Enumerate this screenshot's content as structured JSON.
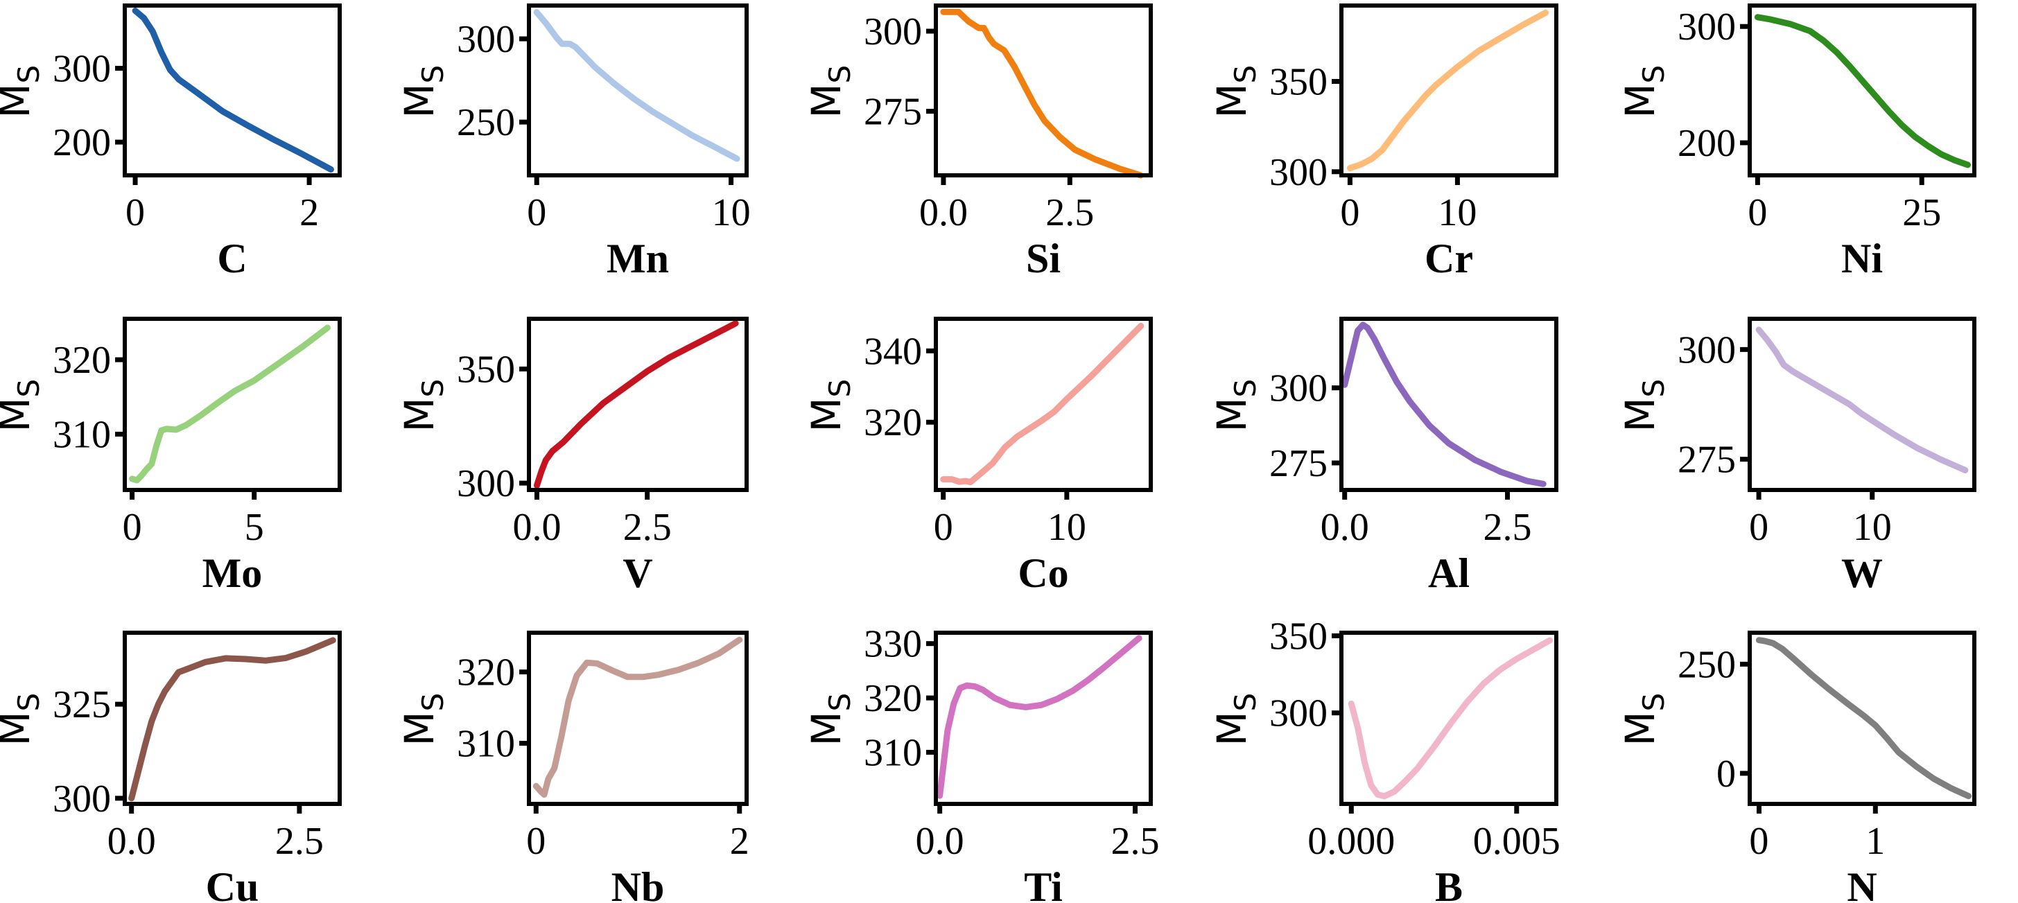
{
  "chart_data": [
    {
      "type": "line",
      "title": "",
      "xlabel": "C",
      "ylabel": "Ms",
      "color": "#1f5fa8",
      "xlim": [
        -0.12,
        2.35
      ],
      "ylim": [
        155,
        385
      ],
      "xticks": [
        0,
        2
      ],
      "xtick_labels": [
        "0",
        "2"
      ],
      "yticks": [
        200,
        300
      ],
      "ytick_labels": [
        "200",
        "300"
      ],
      "x": [
        0,
        0.1,
        0.2,
        0.3,
        0.4,
        0.5,
        0.7,
        1.0,
        1.3,
        1.6,
        1.9,
        2.25
      ],
      "y": [
        378,
        368,
        350,
        322,
        298,
        285,
        268,
        242,
        222,
        203,
        185,
        163
      ]
    },
    {
      "type": "line",
      "title": "",
      "xlabel": "Mn",
      "ylabel": "Ms",
      "color": "#aec7e8",
      "xlim": [
        -0.4,
        10.8
      ],
      "ylim": [
        218,
        320
      ],
      "xticks": [
        0,
        10
      ],
      "xtick_labels": [
        "0",
        "10"
      ],
      "yticks": [
        250,
        300
      ],
      "ytick_labels": [
        "250",
        "300"
      ],
      "x": [
        0,
        0.5,
        1.0,
        1.3,
        1.7,
        2.0,
        3.0,
        4.0,
        5.0,
        6.0,
        7.0,
        8.0,
        9.0,
        10.3
      ],
      "y": [
        316,
        309,
        301,
        297,
        297,
        295,
        283,
        273,
        264,
        256,
        249,
        242,
        236,
        228
      ]
    },
    {
      "type": "line",
      "title": "",
      "xlabel": "Si",
      "ylabel": "Ms",
      "color": "#f07f10",
      "xlim": [
        -0.15,
        4.1
      ],
      "ylim": [
        255,
        308
      ],
      "xticks": [
        0.0,
        2.5
      ],
      "xtick_labels": [
        "0.0",
        "2.5"
      ],
      "yticks": [
        275,
        300
      ],
      "ytick_labels": [
        "275",
        "300"
      ],
      "x": [
        0,
        0.15,
        0.3,
        0.5,
        0.7,
        0.8,
        0.9,
        1.0,
        1.2,
        1.4,
        1.6,
        1.8,
        2.0,
        2.3,
        2.6,
        3.0,
        3.5,
        3.9
      ],
      "y": [
        306,
        306,
        306,
        303,
        301,
        301,
        298,
        296,
        294,
        289,
        283,
        277,
        272,
        267,
        263,
        260,
        257,
        255
      ]
    },
    {
      "type": "line",
      "title": "",
      "xlabel": "Cr",
      "ylabel": "Ms",
      "color": "#ffbb78",
      "xlim": [
        -0.8,
        19.2
      ],
      "ylim": [
        298,
        392
      ],
      "xticks": [
        0,
        10
      ],
      "xtick_labels": [
        "0",
        "10"
      ],
      "yticks": [
        300,
        350
      ],
      "ytick_labels": [
        "300",
        "350"
      ],
      "x": [
        0,
        1,
        2,
        3,
        4,
        5,
        6,
        7,
        8,
        10,
        12,
        14,
        16,
        18.2
      ],
      "y": [
        302,
        304,
        307,
        312,
        320,
        328,
        335,
        342,
        348,
        358,
        367,
        374,
        381,
        388
      ]
    },
    {
      "type": "line",
      "title": "",
      "xlabel": "Ni",
      "ylabel": "Ms",
      "color": "#2c8c1c",
      "xlim": [
        -1.2,
        33
      ],
      "ylim": [
        172,
        318
      ],
      "xticks": [
        0,
        25
      ],
      "xtick_labels": [
        "0",
        "25"
      ],
      "yticks": [
        200,
        300
      ],
      "ytick_labels": [
        "200",
        "300"
      ],
      "x": [
        0,
        2,
        5,
        8,
        10,
        12,
        14,
        16,
        18,
        20,
        22,
        24,
        26,
        28,
        30,
        32
      ],
      "y": [
        308,
        306,
        302,
        296,
        288,
        278,
        266,
        253,
        240,
        227,
        215,
        205,
        197,
        190,
        185,
        181
      ]
    },
    {
      "type": "line",
      "title": "",
      "xlabel": "Mo",
      "ylabel": "Ms",
      "color": "#98d17c",
      "xlim": [
        -0.3,
        8.5
      ],
      "ylim": [
        302.5,
        325.5
      ],
      "xticks": [
        0,
        5
      ],
      "xtick_labels": [
        "0",
        "5"
      ],
      "yticks": [
        310,
        320
      ],
      "ytick_labels": [
        "310",
        "320"
      ],
      "x": [
        0,
        0.2,
        0.4,
        0.6,
        0.8,
        1.0,
        1.2,
        1.4,
        1.8,
        2.2,
        2.8,
        3.5,
        4.2,
        5.0,
        6.0,
        7.0,
        8.0
      ],
      "y": [
        304,
        303.8,
        304.5,
        305.3,
        306,
        308.5,
        310.5,
        310.7,
        310.6,
        311.2,
        312.5,
        314.2,
        315.8,
        317.2,
        319.5,
        321.8,
        324.3
      ]
    },
    {
      "type": "line",
      "title": "",
      "xlabel": "V",
      "ylabel": "Ms",
      "color": "#c5141f",
      "xlim": [
        -0.18,
        4.75
      ],
      "ylim": [
        297,
        372
      ],
      "xticks": [
        0.0,
        2.5
      ],
      "xtick_labels": [
        "0.0",
        "2.5"
      ],
      "yticks": [
        300,
        350
      ],
      "ytick_labels": [
        "300",
        "350"
      ],
      "x": [
        0,
        0.1,
        0.2,
        0.35,
        0.6,
        1.0,
        1.5,
        2.0,
        2.5,
        3.0,
        3.5,
        4.0,
        4.5
      ],
      "y": [
        299,
        305,
        310,
        314,
        318,
        326,
        335,
        342,
        349,
        355,
        360,
        365,
        370
      ]
    },
    {
      "type": "line",
      "title": "",
      "xlabel": "Co",
      "ylabel": "Ms",
      "color": "#f4a19a",
      "xlim": [
        -0.6,
        16.8
      ],
      "ylim": [
        301,
        349
      ],
      "xticks": [
        0,
        10
      ],
      "xtick_labels": [
        "0",
        "10"
      ],
      "yticks": [
        320,
        340
      ],
      "ytick_labels": [
        "320",
        "340"
      ],
      "x": [
        0,
        0.7,
        1.3,
        1.8,
        2.2,
        3.0,
        4.0,
        5.0,
        6.0,
        8.0,
        9.0,
        10.0,
        12.0,
        14.0,
        16.0
      ],
      "y": [
        304,
        304,
        303.3,
        303.5,
        303.2,
        305.5,
        308.5,
        313,
        316,
        320.5,
        323,
        326.5,
        333,
        340,
        347
      ]
    },
    {
      "type": "line",
      "title": "",
      "xlabel": "Al",
      "ylabel": "Ms",
      "color": "#8b68be",
      "xlim": [
        -0.05,
        3.25
      ],
      "ylim": [
        266,
        323
      ],
      "xticks": [
        0.0,
        2.5
      ],
      "xtick_labels": [
        "0.0",
        "2.5"
      ],
      "yticks": [
        275,
        300
      ],
      "ytick_labels": [
        "275",
        "300"
      ],
      "x": [
        0,
        0.1,
        0.2,
        0.28,
        0.35,
        0.45,
        0.6,
        0.8,
        1.0,
        1.3,
        1.6,
        2.0,
        2.4,
        2.8,
        3.05
      ],
      "y": [
        301,
        310,
        319,
        321,
        320,
        316.5,
        310,
        302,
        295.5,
        287.5,
        281.5,
        276,
        272,
        269,
        268
      ]
    },
    {
      "type": "line",
      "title": "",
      "xlabel": "W",
      "ylabel": "Ms",
      "color": "#c3b0d8",
      "xlim": [
        -0.8,
        19
      ],
      "ylim": [
        268,
        307
      ],
      "xticks": [
        0,
        10
      ],
      "xtick_labels": [
        "0",
        "10"
      ],
      "yticks": [
        275,
        300
      ],
      "ytick_labels": [
        "275",
        "300"
      ],
      "x": [
        0,
        0.8,
        1.5,
        2.2,
        3,
        4,
        5,
        6,
        7,
        8,
        9,
        10,
        12,
        14,
        16,
        18.2
      ],
      "y": [
        304.5,
        302,
        299.5,
        296.5,
        295,
        293.5,
        292,
        290.5,
        289,
        287.5,
        285.5,
        283.8,
        280.5,
        277.5,
        275,
        272.5
      ]
    },
    {
      "type": "line",
      "title": "",
      "xlabel": "Cu",
      "ylabel": "Ms",
      "color": "#8c564b",
      "xlim": [
        -0.1,
        3.1
      ],
      "ylim": [
        298.5,
        344
      ],
      "xticks": [
        0.0,
        2.5
      ],
      "xtick_labels": [
        "0.0",
        "2.5"
      ],
      "yticks": [
        300,
        325
      ],
      "ytick_labels": [
        "300",
        "325"
      ],
      "x": [
        0,
        0.1,
        0.2,
        0.3,
        0.4,
        0.5,
        0.6,
        0.7,
        0.85,
        1.1,
        1.4,
        1.7,
        2.0,
        2.3,
        2.6,
        3.0
      ],
      "y": [
        300,
        307,
        314,
        320.5,
        325,
        328.5,
        331,
        333.5,
        334.5,
        336.2,
        337.2,
        337,
        336.6,
        337.3,
        339,
        342
      ]
    },
    {
      "type": "line",
      "title": "",
      "xlabel": "Nb",
      "ylabel": "Ms",
      "color": "#c49c94",
      "xlim": [
        -0.07,
        2.07
      ],
      "ylim": [
        301.5,
        325.5
      ],
      "xticks": [
        0,
        2
      ],
      "xtick_labels": [
        "0",
        "2"
      ],
      "yticks": [
        310,
        320
      ],
      "ytick_labels": [
        "310",
        "320"
      ],
      "x": [
        0,
        0.05,
        0.08,
        0.12,
        0.18,
        0.25,
        0.32,
        0.4,
        0.5,
        0.6,
        0.75,
        0.9,
        1.05,
        1.2,
        1.4,
        1.6,
        1.8,
        2.0
      ],
      "y": [
        304,
        303.2,
        302.8,
        305,
        306.5,
        311,
        316,
        319.5,
        321.3,
        321.2,
        320.2,
        319.3,
        319.3,
        319.6,
        320.3,
        321.3,
        322.6,
        324.5
      ]
    },
    {
      "type": "line",
      "title": "",
      "xlabel": "Ti",
      "ylabel": "Ms",
      "color": "#d173c0",
      "xlim": [
        -0.05,
        2.7
      ],
      "ylim": [
        300.5,
        332
      ],
      "xticks": [
        0.0,
        2.5
      ],
      "xtick_labels": [
        "0.0",
        "2.5"
      ],
      "yticks": [
        310,
        320,
        330
      ],
      "ytick_labels": [
        "310",
        "320",
        "330"
      ],
      "x": [
        0,
        0.05,
        0.1,
        0.18,
        0.26,
        0.35,
        0.45,
        0.55,
        0.7,
        0.9,
        1.1,
        1.3,
        1.5,
        1.7,
        1.9,
        2.1,
        2.3,
        2.55
      ],
      "y": [
        302,
        308,
        314,
        319,
        321.8,
        322.3,
        322.1,
        321.5,
        320,
        318.7,
        318.3,
        318.7,
        319.8,
        321.3,
        323.3,
        325.6,
        328,
        331
      ]
    },
    {
      "type": "line",
      "title": "",
      "xlabel": "B",
      "ylabel": "Ms",
      "color": "#f2b6cb",
      "xlim": [
        -0.0003,
        0.0062
      ],
      "ylim": [
        241,
        352
      ],
      "xticks": [
        0.0,
        0.005
      ],
      "xtick_labels": [
        "0.000",
        "0.005"
      ],
      "yticks": [
        300,
        350
      ],
      "ytick_labels": [
        "300",
        "350"
      ],
      "x": [
        0,
        0.0002,
        0.0004,
        0.0006,
        0.0008,
        0.001,
        0.0013,
        0.0016,
        0.002,
        0.0025,
        0.003,
        0.0035,
        0.004,
        0.0045,
        0.005,
        0.0055,
        0.006
      ],
      "y": [
        306,
        290,
        268,
        253,
        247,
        246,
        249,
        255,
        264,
        278,
        293,
        307,
        319,
        328,
        335,
        341,
        347
      ]
    },
    {
      "type": "line",
      "title": "",
      "xlabel": "N",
      "ylabel": "Ms",
      "color": "#7f7f7f",
      "xlim": [
        -0.08,
        1.85
      ],
      "ylim": [
        -70,
        322
      ],
      "xticks": [
        0,
        1
      ],
      "xtick_labels": [
        "0",
        "1"
      ],
      "yticks": [
        0,
        250
      ],
      "ytick_labels": [
        "0",
        "250"
      ],
      "x": [
        0,
        0.05,
        0.12,
        0.2,
        0.3,
        0.45,
        0.6,
        0.75,
        0.9,
        1.0,
        1.1,
        1.2,
        1.35,
        1.5,
        1.65,
        1.8
      ],
      "y": [
        305,
        303,
        298,
        285,
        262,
        226,
        193,
        162,
        132,
        110,
        80,
        48,
        16,
        -12,
        -34,
        -52
      ]
    }
  ]
}
